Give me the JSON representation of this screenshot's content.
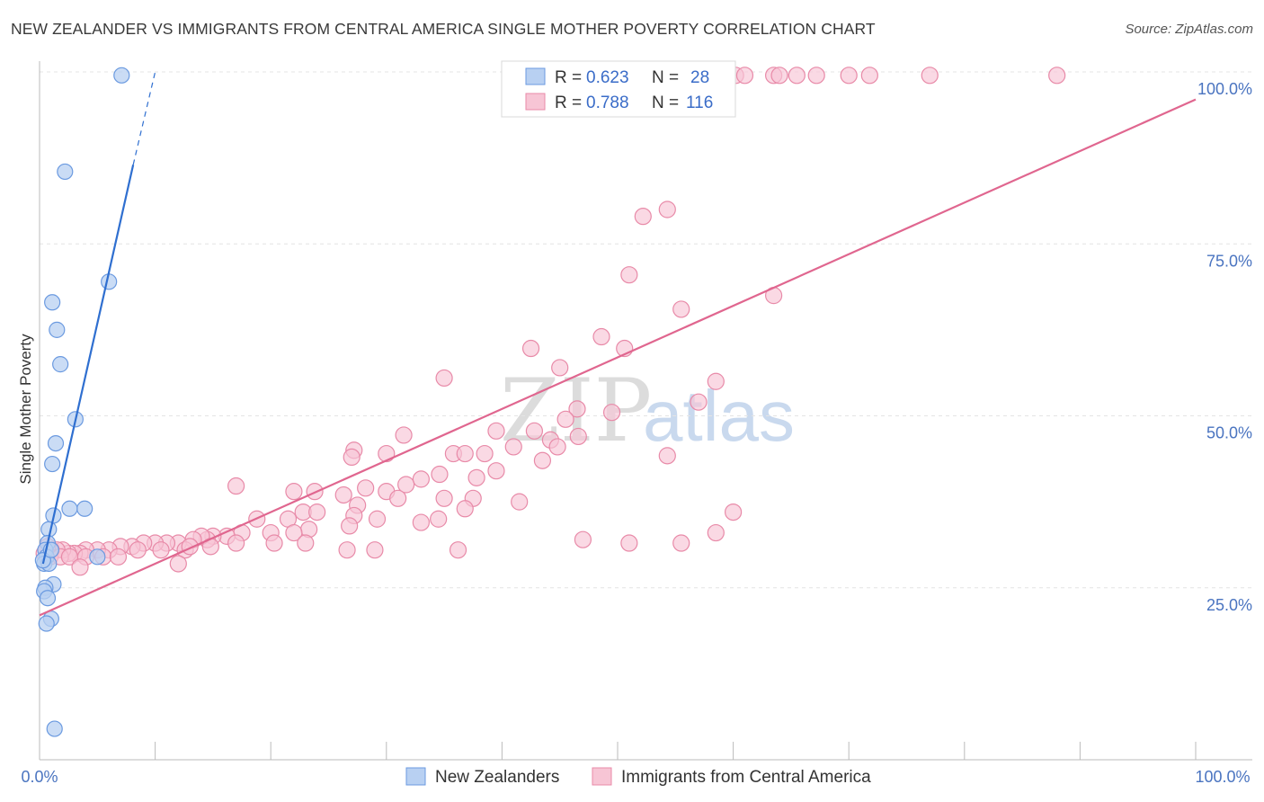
{
  "chart_data": {
    "type": "scatter",
    "title": "NEW ZEALANDER VS IMMIGRANTS FROM CENTRAL AMERICA SINGLE MOTHER POVERTY CORRELATION CHART",
    "source": "Source: ZipAtlas.com",
    "xlabel": "",
    "ylabel": "Single Mother Poverty",
    "xlim": [
      0,
      100
    ],
    "ylim": [
      0,
      100
    ],
    "x_tick_labels": [
      "0.0%",
      "100.0%"
    ],
    "y_tick_labels": [
      {
        "value": 25,
        "label": "25.0%"
      },
      {
        "value": 50,
        "label": "50.0%"
      },
      {
        "value": 75,
        "label": "75.0%"
      },
      {
        "value": 100,
        "label": "100.0%"
      }
    ],
    "watermark": {
      "part1": "ZIP",
      "part2": "atlas"
    },
    "legend": [
      {
        "r_label": "R = ",
        "r_value": "0.623",
        "n_label": "N = ",
        "n_value": "28"
      },
      {
        "r_label": "R = ",
        "r_value": "0.788",
        "n_label": "N = ",
        "n_value": "116"
      }
    ],
    "series": [
      {
        "name": "New Zealanders",
        "color": "#6b9ae0",
        "fill": "#b8d0f2",
        "trend": {
          "x0": 0.3,
          "y0": 28.5,
          "x1": 8.1,
          "y1": 86.5,
          "dash_x1": 10.0,
          "dash_y1": 100.0,
          "color": "#2f6fd0"
        },
        "points": [
          [
            7.1,
            99.5
          ],
          [
            2.2,
            85.5
          ],
          [
            6.0,
            69.5
          ],
          [
            1.1,
            66.5
          ],
          [
            1.5,
            62.5
          ],
          [
            1.8,
            57.5
          ],
          [
            3.1,
            49.5
          ],
          [
            1.4,
            46.0
          ],
          [
            1.1,
            43.0
          ],
          [
            3.9,
            36.5
          ],
          [
            2.6,
            36.5
          ],
          [
            1.2,
            35.5
          ],
          [
            0.8,
            33.5
          ],
          [
            0.7,
            31.5
          ],
          [
            0.5,
            30.5
          ],
          [
            0.6,
            29.5
          ],
          [
            0.4,
            28.5
          ],
          [
            0.8,
            28.5
          ],
          [
            5.0,
            29.5
          ],
          [
            1.2,
            25.5
          ],
          [
            0.5,
            25.0
          ],
          [
            0.4,
            24.5
          ],
          [
            0.7,
            23.5
          ],
          [
            1.0,
            20.5
          ],
          [
            0.6,
            19.8
          ],
          [
            1.3,
            4.5
          ],
          [
            0.3,
            29.0
          ],
          [
            1.0,
            30.5
          ]
        ]
      },
      {
        "name": "Immigrants from Central America",
        "color": "#e88aa8",
        "fill": "#f7c5d5",
        "trend": {
          "x0": 0.0,
          "y0": 21.0,
          "x1": 100.0,
          "y1": 96.0,
          "color": "#e0668f"
        },
        "points": [
          [
            60.2,
            99.5
          ],
          [
            61.0,
            99.5
          ],
          [
            63.5,
            99.5
          ],
          [
            64.0,
            99.5
          ],
          [
            65.5,
            99.5
          ],
          [
            67.2,
            99.5
          ],
          [
            70.0,
            99.5
          ],
          [
            71.8,
            99.5
          ],
          [
            77.0,
            99.5
          ],
          [
            88.0,
            99.5
          ],
          [
            54.3,
            80.0
          ],
          [
            52.2,
            79.0
          ],
          [
            51.0,
            70.5
          ],
          [
            63.5,
            67.5
          ],
          [
            55.5,
            65.5
          ],
          [
            48.6,
            61.5
          ],
          [
            50.6,
            59.8
          ],
          [
            42.5,
            59.8
          ],
          [
            45.0,
            57.0
          ],
          [
            35.0,
            55.5
          ],
          [
            58.5,
            55.0
          ],
          [
            57.0,
            52.0
          ],
          [
            46.5,
            51.0
          ],
          [
            49.5,
            50.5
          ],
          [
            45.5,
            49.5
          ],
          [
            39.5,
            47.8
          ],
          [
            42.8,
            47.8
          ],
          [
            46.6,
            47.0
          ],
          [
            31.5,
            47.2
          ],
          [
            44.2,
            46.5
          ],
          [
            44.8,
            45.5
          ],
          [
            41.0,
            45.5
          ],
          [
            27.2,
            45.0
          ],
          [
            30.0,
            44.5
          ],
          [
            35.8,
            44.5
          ],
          [
            36.8,
            44.5
          ],
          [
            38.5,
            44.5
          ],
          [
            27.0,
            44.0
          ],
          [
            43.5,
            43.5
          ],
          [
            54.3,
            44.2
          ],
          [
            39.5,
            42.0
          ],
          [
            34.6,
            41.5
          ],
          [
            37.8,
            41.0
          ],
          [
            33.0,
            40.8
          ],
          [
            31.7,
            40.0
          ],
          [
            30.0,
            39.0
          ],
          [
            28.2,
            39.5
          ],
          [
            23.8,
            39.0
          ],
          [
            22.0,
            39.0
          ],
          [
            26.3,
            38.5
          ],
          [
            17.0,
            39.8
          ],
          [
            31.0,
            38.0
          ],
          [
            35.0,
            38.0
          ],
          [
            37.5,
            38.0
          ],
          [
            41.5,
            37.5
          ],
          [
            27.5,
            37.0
          ],
          [
            36.8,
            36.5
          ],
          [
            22.8,
            36.0
          ],
          [
            24.0,
            36.0
          ],
          [
            27.2,
            35.5
          ],
          [
            29.2,
            35.0
          ],
          [
            21.5,
            35.0
          ],
          [
            18.8,
            35.0
          ],
          [
            34.5,
            35.0
          ],
          [
            33.0,
            34.5
          ],
          [
            26.8,
            34.0
          ],
          [
            23.3,
            33.5
          ],
          [
            22.0,
            33.0
          ],
          [
            20.0,
            33.0
          ],
          [
            17.5,
            33.0
          ],
          [
            16.2,
            32.5
          ],
          [
            15.0,
            32.5
          ],
          [
            14.5,
            32.0
          ],
          [
            14.0,
            32.5
          ],
          [
            13.3,
            32.0
          ],
          [
            12.0,
            31.5
          ],
          [
            11.0,
            31.5
          ],
          [
            10.0,
            31.5
          ],
          [
            9.0,
            31.5
          ],
          [
            8.0,
            31.0
          ],
          [
            7.0,
            31.0
          ],
          [
            6.0,
            30.5
          ],
          [
            5.0,
            30.5
          ],
          [
            4.0,
            30.5
          ],
          [
            3.5,
            30.0
          ],
          [
            3.0,
            30.0
          ],
          [
            2.5,
            30.0
          ],
          [
            2.0,
            30.5
          ],
          [
            1.5,
            30.5
          ],
          [
            1.0,
            30.5
          ],
          [
            0.7,
            31.0
          ],
          [
            0.4,
            30.0
          ],
          [
            0.9,
            29.5
          ],
          [
            1.8,
            29.5
          ],
          [
            2.6,
            29.5
          ],
          [
            4.0,
            29.5
          ],
          [
            5.5,
            29.5
          ],
          [
            6.8,
            29.5
          ],
          [
            8.5,
            30.5
          ],
          [
            10.5,
            30.5
          ],
          [
            12.6,
            30.5
          ],
          [
            13.0,
            31.0
          ],
          [
            14.8,
            31.0
          ],
          [
            17.0,
            31.5
          ],
          [
            20.3,
            31.5
          ],
          [
            23.0,
            31.5
          ],
          [
            26.6,
            30.5
          ],
          [
            29.0,
            30.5
          ],
          [
            36.2,
            30.5
          ],
          [
            51.0,
            31.5
          ],
          [
            55.5,
            31.5
          ],
          [
            58.5,
            33.0
          ],
          [
            60.0,
            36.0
          ],
          [
            47.0,
            32.0
          ],
          [
            12.0,
            28.5
          ],
          [
            3.5,
            28.0
          ]
        ]
      }
    ]
  },
  "bottom_legend": [
    "New Zealanders",
    "Immigrants from Central America"
  ]
}
